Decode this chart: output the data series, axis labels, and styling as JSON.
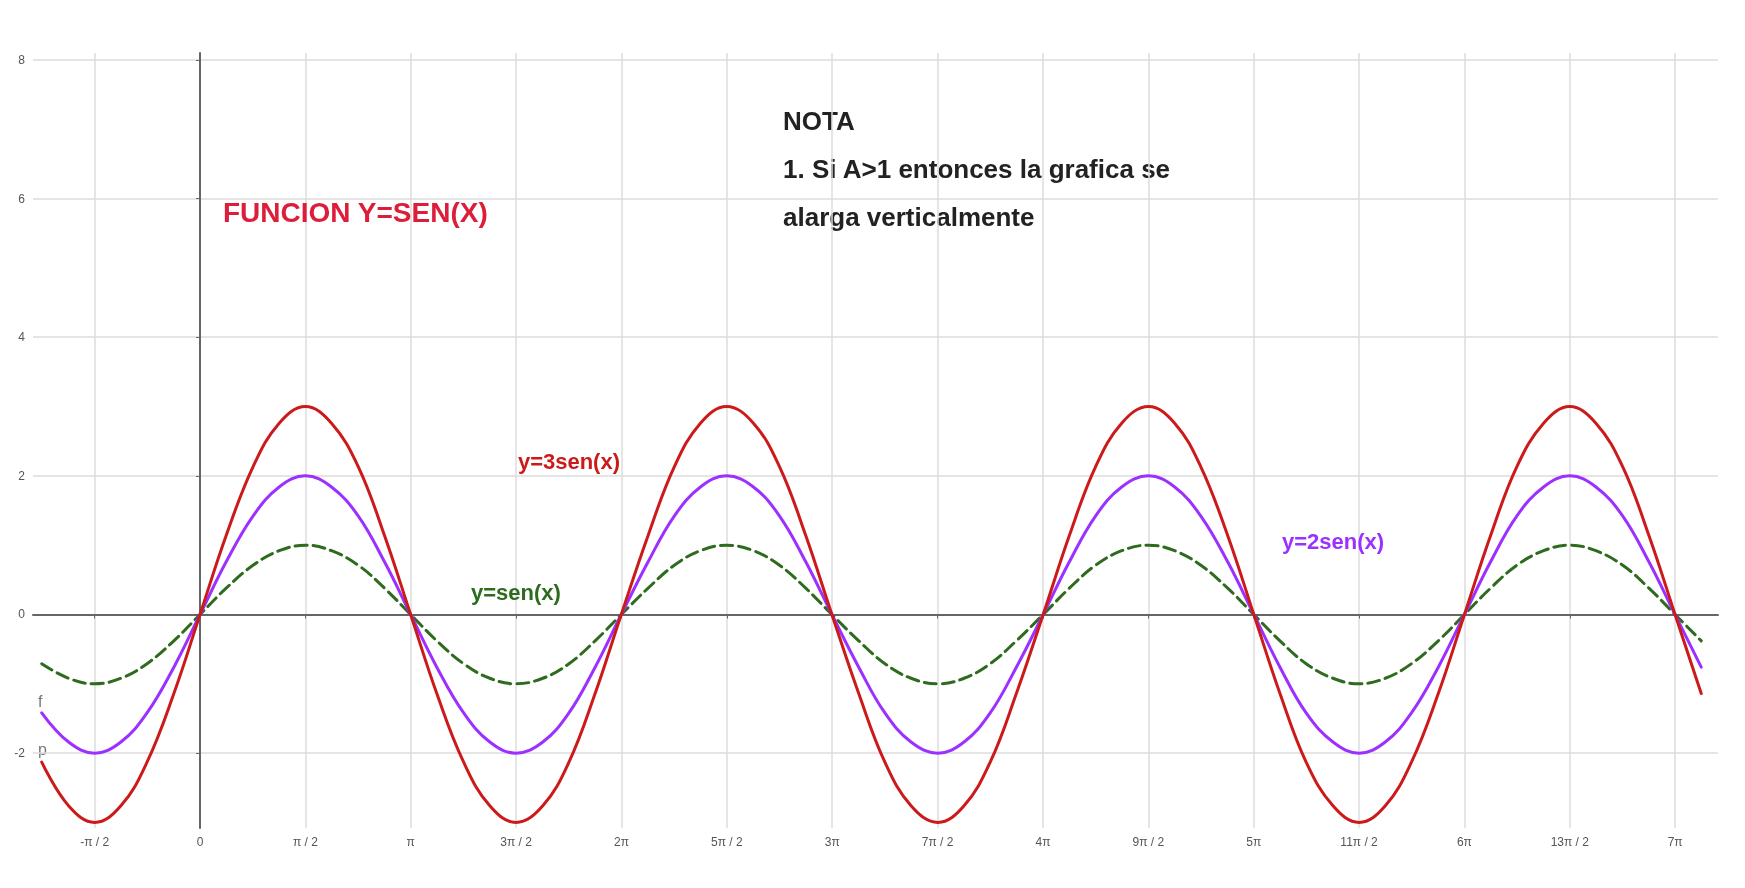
{
  "chart_data": {
    "type": "line",
    "title": "FUNCION Y=SEN(X)",
    "x": [
      -2.36,
      -1.96,
      -1.57,
      -1.18,
      -0.79,
      -0.39,
      0,
      0.39,
      0.79,
      1.18,
      1.57,
      1.96,
      2.36,
      2.75,
      3.14,
      3.53,
      3.93,
      4.32,
      4.71,
      5.11,
      5.5,
      5.89,
      6.28,
      6.68,
      7.07,
      7.46,
      7.85,
      8.25,
      8.64,
      9.03,
      9.42,
      9.82,
      10.21,
      10.6,
      11,
      11.39,
      11.78,
      12.17,
      12.57,
      12.96,
      13.35,
      13.74,
      14.14,
      14.53,
      14.92,
      15.32,
      15.71,
      16.1,
      16.49,
      16.89,
      17.28,
      17.67,
      18.06,
      18.46,
      18.85,
      19.24,
      19.63,
      20.03,
      20.42,
      20.81,
      21.21,
      21.6,
      21.99,
      22.38
    ],
    "series": [
      {
        "name": "y=sen(x)",
        "color": "#2e6b1f",
        "line_style": "dashed",
        "values": [
          -0.71,
          -0.92,
          -1,
          -0.92,
          -0.71,
          -0.38,
          0,
          0.38,
          0.71,
          0.92,
          1,
          0.92,
          0.71,
          0.38,
          0,
          -0.38,
          -0.71,
          -0.92,
          -1,
          -0.92,
          -0.71,
          -0.38,
          0,
          0.38,
          0.71,
          0.92,
          1,
          0.92,
          0.71,
          0.38,
          0,
          -0.38,
          -0.71,
          -0.92,
          -1,
          -0.92,
          -0.71,
          -0.38,
          0,
          0.38,
          0.71,
          0.92,
          1,
          0.92,
          0.71,
          0.38,
          0,
          -0.38,
          -0.71,
          -0.92,
          -1,
          -0.92,
          -0.71,
          -0.38,
          0,
          0.38,
          0.71,
          0.92,
          1,
          0.92,
          0.71,
          0.38,
          0,
          -0.38
        ]
      },
      {
        "name": "y=2sen(x)",
        "color": "#9b30ff",
        "line_style": "solid",
        "values": [
          -1.42,
          -1.84,
          -2,
          -1.84,
          -1.42,
          -0.76,
          0,
          0.76,
          1.42,
          1.84,
          2,
          1.84,
          1.42,
          0.76,
          0,
          -0.76,
          -1.42,
          -1.84,
          -2,
          -1.84,
          -1.42,
          -0.76,
          0,
          0.76,
          1.42,
          1.84,
          2,
          1.84,
          1.42,
          0.76,
          0,
          -0.76,
          -1.42,
          -1.84,
          -2,
          -1.84,
          -1.42,
          -0.76,
          0,
          0.76,
          1.42,
          1.84,
          2,
          1.84,
          1.42,
          0.76,
          0,
          -0.76,
          -1.42,
          -1.84,
          -2,
          -1.84,
          -1.42,
          -0.76,
          0,
          0.76,
          1.42,
          1.84,
          2,
          1.84,
          1.42,
          0.76,
          0,
          -0.76
        ]
      },
      {
        "name": "y=3sen(x)",
        "color": "#cc1a1a",
        "line_style": "solid",
        "values": [
          -2.13,
          -2.76,
          -3,
          -2.76,
          -2.13,
          -1.14,
          0,
          1.14,
          2.13,
          2.76,
          3,
          2.76,
          2.13,
          1.14,
          0,
          -1.14,
          -2.13,
          -2.76,
          -3,
          -2.76,
          -2.13,
          -1.14,
          0,
          1.14,
          2.13,
          2.76,
          3,
          2.76,
          2.13,
          1.14,
          0,
          -1.14,
          -2.13,
          -2.76,
          -3,
          -2.76,
          -2.13,
          -1.14,
          0,
          1.14,
          2.13,
          2.76,
          3,
          2.76,
          2.13,
          1.14,
          0,
          -1.14,
          -2.13,
          -2.76,
          -3,
          -2.76,
          -2.13,
          -1.14,
          0,
          1.14,
          2.13,
          2.76,
          3,
          2.76,
          2.13,
          1.14,
          0,
          -1.14
        ]
      }
    ],
    "annotations": [
      "NOTA",
      "1. Si A>1 entonces la grafica se",
      "alarga verticalmente",
      "f",
      "p"
    ],
    "xlim": [
      -2.49,
      22.63
    ],
    "xticks": [
      {
        "value": -1.5708,
        "label": "-π / 2"
      },
      {
        "value": 0,
        "label": "0"
      },
      {
        "value": 1.5708,
        "label": "π / 2"
      },
      {
        "value": 3.1416,
        "label": "π"
      },
      {
        "value": 4.7124,
        "label": "3π / 2"
      },
      {
        "value": 6.2832,
        "label": "2π"
      },
      {
        "value": 7.854,
        "label": "5π / 2"
      },
      {
        "value": 9.4248,
        "label": "3π"
      },
      {
        "value": 10.9956,
        "label": "7π / 2"
      },
      {
        "value": 12.5664,
        "label": "4π"
      },
      {
        "value": 14.1372,
        "label": "9π / 2"
      },
      {
        "value": 15.708,
        "label": "5π"
      },
      {
        "value": 17.2788,
        "label": "11π / 2"
      },
      {
        "value": 18.8496,
        "label": "6π"
      },
      {
        "value": 20.4204,
        "label": "13π / 2"
      },
      {
        "value": 21.9911,
        "label": "7π"
      }
    ],
    "ylim": [
      -3.08,
      8.1
    ],
    "yticks": [
      -2,
      0,
      2,
      4,
      6,
      8
    ],
    "grid": true,
    "legend": false,
    "marker": "none"
  }
}
